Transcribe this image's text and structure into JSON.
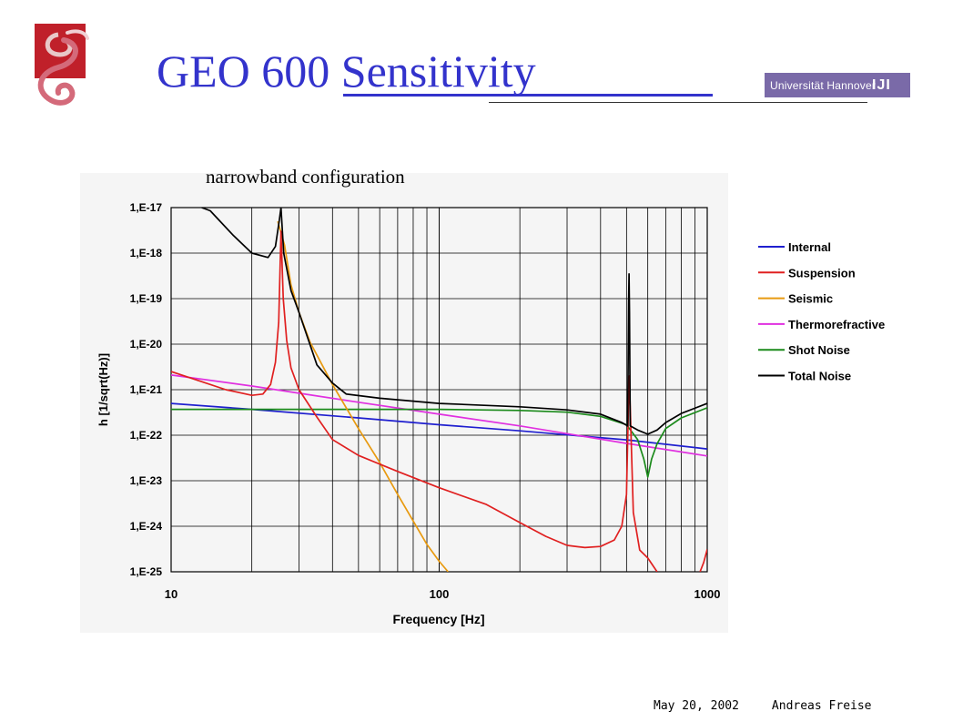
{
  "slide": {
    "title": "GEO 600 Sensitivity",
    "university_logo_text": "Universität Hannover",
    "university_logo_mark": "IJI",
    "footer": {
      "date": "May 20, 2002",
      "author": "Andreas Freise"
    },
    "colors": {
      "title": "#3333cc",
      "logo_red": "#c0202a",
      "uni_purple": "#7a6aa8"
    },
    "icons": [
      "geo-logo-icon",
      "university-hannover-logo-icon"
    ]
  },
  "chart_data": {
    "type": "line",
    "subtitle": "narrowband configuration",
    "xlabel": "Frequency   [Hz]",
    "ylabel": "h   [1/sqrt(Hz)]",
    "x_scale": "log",
    "y_scale": "log",
    "xlim": [
      10,
      1000
    ],
    "ylim": [
      1e-25,
      1e-17
    ],
    "grid": true,
    "legend_position": "right",
    "x_ticks": [
      {
        "value": 10,
        "label": "10"
      },
      {
        "value": 100,
        "label": "100"
      },
      {
        "value": 1000,
        "label": "1000"
      }
    ],
    "y_ticks": [
      {
        "value": 1e-17,
        "label": "1,E-17"
      },
      {
        "value": 1e-18,
        "label": "1,E-18"
      },
      {
        "value": 1e-19,
        "label": "1,E-19"
      },
      {
        "value": 1e-20,
        "label": "1,E-20"
      },
      {
        "value": 1e-21,
        "label": "1,E-21"
      },
      {
        "value": 1e-22,
        "label": "1,E-22"
      },
      {
        "value": 1e-23,
        "label": "1,E-23"
      },
      {
        "value": 1e-24,
        "label": "1,E-24"
      },
      {
        "value": 1e-25,
        "label": "1,E-25"
      }
    ],
    "series": [
      {
        "name": "Internal",
        "color": "#1f1fcf",
        "points": [
          [
            10,
            5e-22
          ],
          [
            20,
            3.7e-22
          ],
          [
            50,
            2.4e-22
          ],
          [
            100,
            1.7e-22
          ],
          [
            200,
            1.25e-22
          ],
          [
            500,
            7.9e-23
          ],
          [
            1000,
            5e-23
          ]
        ]
      },
      {
        "name": "Suspension",
        "color": "#e02020",
        "points": [
          [
            10,
            2.5e-21
          ],
          [
            13,
            1.5e-21
          ],
          [
            16,
            1e-21
          ],
          [
            20,
            7.5e-22
          ],
          [
            22,
            8e-22
          ],
          [
            23.5,
            1.3e-21
          ],
          [
            24.5,
            4e-21
          ],
          [
            25.2,
            3e-20
          ],
          [
            25.7,
            3e-18
          ],
          [
            26.2,
            1e-19
          ],
          [
            27,
            1.2e-20
          ],
          [
            28,
            3e-21
          ],
          [
            30,
            1e-21
          ],
          [
            35,
            2.5e-22
          ],
          [
            40,
            8e-23
          ],
          [
            50,
            3.6e-23
          ],
          [
            70,
            1.6e-23
          ],
          [
            100,
            7e-24
          ],
          [
            150,
            3e-24
          ],
          [
            200,
            1.2e-24
          ],
          [
            250,
            6e-25
          ],
          [
            300,
            3.8e-25
          ],
          [
            350,
            3.4e-25
          ],
          [
            400,
            3.6e-25
          ],
          [
            450,
            5e-25
          ],
          [
            480,
            1e-24
          ],
          [
            500,
            5e-24
          ],
          [
            508,
            4e-22
          ],
          [
            512,
            2e-21
          ],
          [
            516,
            4e-22
          ],
          [
            530,
            2e-24
          ],
          [
            560,
            3e-25
          ],
          [
            600,
            2e-25
          ],
          [
            650,
            1e-25
          ]
        ]
      },
      {
        "name": "Suspension",
        "color": "#e02020",
        "points": [
          [
            940,
            1e-25
          ],
          [
            970,
            1.6e-25
          ],
          [
            1000,
            3.1e-25
          ]
        ]
      },
      {
        "name": "Seismic",
        "color": "#e89a10",
        "points": [
          [
            25,
            5e-18
          ],
          [
            26.5,
            1.5e-18
          ],
          [
            28,
            2e-19
          ],
          [
            30,
            5e-20
          ],
          [
            33,
            1.1e-20
          ],
          [
            40,
            1.3e-21
          ],
          [
            50,
            1.4e-22
          ],
          [
            60,
            2.5e-23
          ],
          [
            70,
            5e-24
          ],
          [
            80,
            1.3e-24
          ],
          [
            90,
            4e-25
          ],
          [
            100,
            1.7e-25
          ],
          [
            108,
            1e-25
          ]
        ]
      },
      {
        "name": "Thermorefractive",
        "color": "#e030e0",
        "points": [
          [
            10,
            2.1e-21
          ],
          [
            20,
            1.2e-21
          ],
          [
            50,
            5.3e-22
          ],
          [
            100,
            2.9e-22
          ],
          [
            200,
            1.6e-22
          ],
          [
            500,
            6.6e-23
          ],
          [
            1000,
            3.5e-23
          ]
        ]
      },
      {
        "name": "Shot Noise",
        "color": "#1a8a1a",
        "points": [
          [
            10,
            3.7e-22
          ],
          [
            50,
            3.7e-22
          ],
          [
            100,
            3.7e-22
          ],
          [
            200,
            3.5e-22
          ],
          [
            300,
            3.2e-22
          ],
          [
            400,
            2.6e-22
          ],
          [
            500,
            1.7e-22
          ],
          [
            550,
            8e-23
          ],
          [
            580,
            3e-23
          ],
          [
            600,
            1.2e-23
          ],
          [
            620,
            3e-23
          ],
          [
            650,
            6.5e-23
          ],
          [
            700,
            1.4e-22
          ],
          [
            800,
            2.4e-22
          ],
          [
            1000,
            4e-22
          ]
        ]
      },
      {
        "name": "Total Noise",
        "color": "#000000",
        "points": [
          [
            13,
            1e-17
          ],
          [
            14,
            8.5e-18
          ],
          [
            17,
            2.5e-18
          ],
          [
            20,
            1e-18
          ],
          [
            23,
            8e-19
          ],
          [
            24.5,
            1.4e-18
          ],
          [
            25.3,
            5e-18
          ],
          [
            25.7,
            1e-17
          ],
          [
            26.3,
            1e-18
          ],
          [
            28,
            1.5e-19
          ],
          [
            30,
            5e-20
          ],
          [
            35,
            3.5e-21
          ],
          [
            40,
            1.4e-21
          ],
          [
            45,
            8e-22
          ],
          [
            60,
            6.5e-22
          ],
          [
            100,
            5e-22
          ],
          [
            200,
            4.2e-22
          ],
          [
            300,
            3.6e-22
          ],
          [
            400,
            2.9e-22
          ],
          [
            480,
            1.9e-22
          ],
          [
            505,
            1.6e-22
          ],
          [
            509,
            8e-20
          ],
          [
            511,
            3.5e-19
          ],
          [
            513,
            5e-20
          ],
          [
            516,
            1.6e-22
          ],
          [
            550,
            1.3e-22
          ],
          [
            600,
            1.05e-22
          ],
          [
            650,
            1.3e-22
          ],
          [
            700,
            1.9e-22
          ],
          [
            800,
            3e-22
          ],
          [
            1000,
            5e-22
          ]
        ]
      }
    ]
  }
}
